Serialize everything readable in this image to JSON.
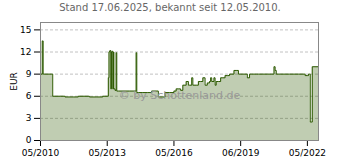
{
  "chart_data": {
    "type": "step",
    "title": "Stand 17.06.2025, bekannt seit 12.05.2010.",
    "ylabel": "EUR",
    "x": [
      0.0,
      0.08,
      0.12,
      0.5,
      0.55,
      0.9,
      1.1,
      1.5,
      1.7,
      2.0,
      2.2,
      2.5,
      2.8,
      3.0,
      3.05,
      3.08,
      3.1,
      3.13,
      3.16,
      3.19,
      3.22,
      3.25,
      3.28,
      3.3,
      3.35,
      3.4,
      3.43,
      3.5,
      3.8,
      4.0,
      4.2,
      4.3,
      4.33,
      4.4,
      4.6,
      4.8,
      5.0,
      5.2,
      5.3,
      5.5,
      5.6,
      5.8,
      6.0,
      6.1,
      6.2,
      6.3,
      6.4,
      6.5,
      6.55,
      6.65,
      6.7,
      6.8,
      6.85,
      6.9,
      7.0,
      7.1,
      7.2,
      7.3,
      7.4,
      7.5,
      7.6,
      7.65,
      7.7,
      7.8,
      7.85,
      7.9,
      8.0,
      8.1,
      8.2,
      8.3,
      8.4,
      8.5,
      8.6,
      8.7,
      8.8,
      8.9,
      9.0,
      9.1,
      9.3,
      9.4,
      9.5,
      9.6,
      9.7,
      9.8,
      10.0,
      10.2,
      10.4,
      10.5,
      10.55,
      10.6,
      10.8,
      11.0,
      11.2,
      11.4,
      11.6,
      11.8,
      11.9,
      12.0,
      12.05,
      12.1,
      12.13,
      12.18,
      12.22,
      12.5
    ],
    "values": [
      9.0,
      13.5,
      9.0,
      9.0,
      6.0,
      6.0,
      5.9,
      5.9,
      6.0,
      6.0,
      5.9,
      5.9,
      6.0,
      6.0,
      8.5,
      12.0,
      12.1,
      12.2,
      7.0,
      12.0,
      12.1,
      7.0,
      12.0,
      7.0,
      6.8,
      11.9,
      6.7,
      6.7,
      6.7,
      6.7,
      6.7,
      11.9,
      6.5,
      6.5,
      6.5,
      6.5,
      6.7,
      6.7,
      5.9,
      5.9,
      6.5,
      6.5,
      6.7,
      7.0,
      7.0,
      6.8,
      7.5,
      7.5,
      8.0,
      7.5,
      7.5,
      8.5,
      7.5,
      7.5,
      7.5,
      8.0,
      8.0,
      8.5,
      7.5,
      7.8,
      8.0,
      8.5,
      8.0,
      8.5,
      7.5,
      8.0,
      8.0,
      8.5,
      8.5,
      8.8,
      8.8,
      9.0,
      9.0,
      9.5,
      9.5,
      9.0,
      9.0,
      9.0,
      8.5,
      9.0,
      9.0,
      9.0,
      9.0,
      9.0,
      9.0,
      9.0,
      9.0,
      10.0,
      9.5,
      9.0,
      9.0,
      9.0,
      9.0,
      9.0,
      9.0,
      9.0,
      8.8,
      8.8,
      9.0,
      9.0,
      2.5,
      2.5,
      10.0,
      10.0
    ],
    "color": "#2d5a00",
    "xlim": [
      0.0,
      12.5
    ],
    "xticks": [
      {
        "value": 0.0,
        "label": "05/2010"
      },
      {
        "value": 3.0,
        "label": "05/2013"
      },
      {
        "value": 6.0,
        "label": "05/2016"
      },
      {
        "value": 9.0,
        "label": "06/2019"
      },
      {
        "value": 12.0,
        "label": "05/2022"
      }
    ],
    "ylim": [
      0,
      16
    ],
    "yticks": [
      0,
      3,
      6,
      9,
      12,
      15
    ],
    "grid": true,
    "annotations": [
      "© by Schottenland.de"
    ]
  }
}
